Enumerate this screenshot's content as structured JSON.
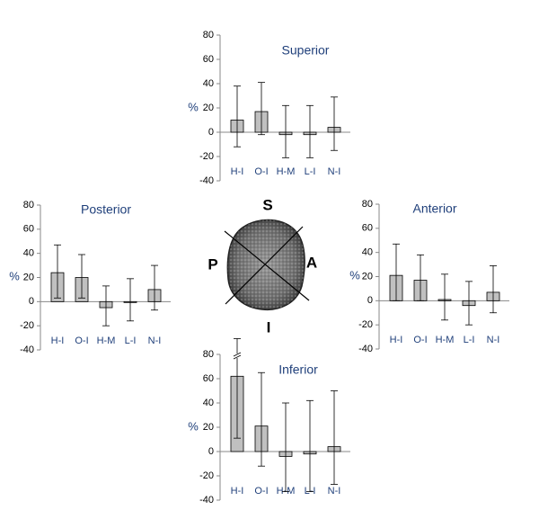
{
  "chart_data": [
    {
      "type": "bar",
      "title": "Superior",
      "y_label": "%",
      "categories": [
        "H-I",
        "O-I",
        "H-M",
        "L-I",
        "N-I"
      ],
      "values": [
        10,
        17,
        -2,
        -2,
        4
      ],
      "whisker_high": [
        38,
        41,
        22,
        22,
        29
      ],
      "whisker_low": [
        -12,
        -2,
        -21,
        -21,
        -15
      ],
      "color": "#c0c0c0",
      "ylim": [
        -40,
        80
      ],
      "yticks": [
        -40,
        -20,
        0,
        20,
        40,
        60,
        80
      ]
    },
    {
      "type": "bar",
      "title": "Posterior",
      "y_label": "%",
      "categories": [
        "H-I",
        "O-I",
        "H-M",
        "L-I",
        "N-I"
      ],
      "values": [
        24,
        20,
        -5,
        0,
        10
      ],
      "whisker_high": [
        47,
        39,
        13,
        19,
        30
      ],
      "whisker_low": [
        3,
        3,
        -20,
        -16,
        -7
      ],
      "color": "#c0c0c0",
      "ylim": [
        -40,
        80
      ],
      "yticks": [
        -40,
        -20,
        0,
        20,
        40,
        60,
        80
      ]
    },
    {
      "type": "bar",
      "title": "Anterior",
      "y_label": "%",
      "categories": [
        "H-I",
        "O-I",
        "H-M",
        "L-I",
        "N-I"
      ],
      "values": [
        21,
        17,
        1,
        -4,
        7
      ],
      "whisker_high": [
        47,
        38,
        22,
        16,
        29
      ],
      "whisker_low": [
        0,
        0,
        -16,
        -20,
        -10
      ],
      "color": "#c0c0c0",
      "ylim": [
        -40,
        80
      ],
      "yticks": [
        -40,
        -20,
        0,
        20,
        40,
        60,
        80
      ]
    },
    {
      "type": "bar",
      "title": "Inferior",
      "y_label": "%",
      "categories": [
        "H-I",
        "O-I",
        "H-M",
        "L-I",
        "N-I"
      ],
      "values": [
        62,
        21,
        -4,
        -2,
        4
      ],
      "whisker_high": [
        93,
        65,
        40,
        42,
        50
      ],
      "whisker_low": [
        11,
        -12,
        -33,
        -33,
        -27
      ],
      "color": "#c0c0c0",
      "ylim": [
        -40,
        80
      ],
      "yticks": [
        -40,
        -20,
        0,
        20,
        40,
        60,
        80
      ]
    }
  ],
  "specimen_labels": [
    "S",
    "P",
    "A",
    "I"
  ]
}
